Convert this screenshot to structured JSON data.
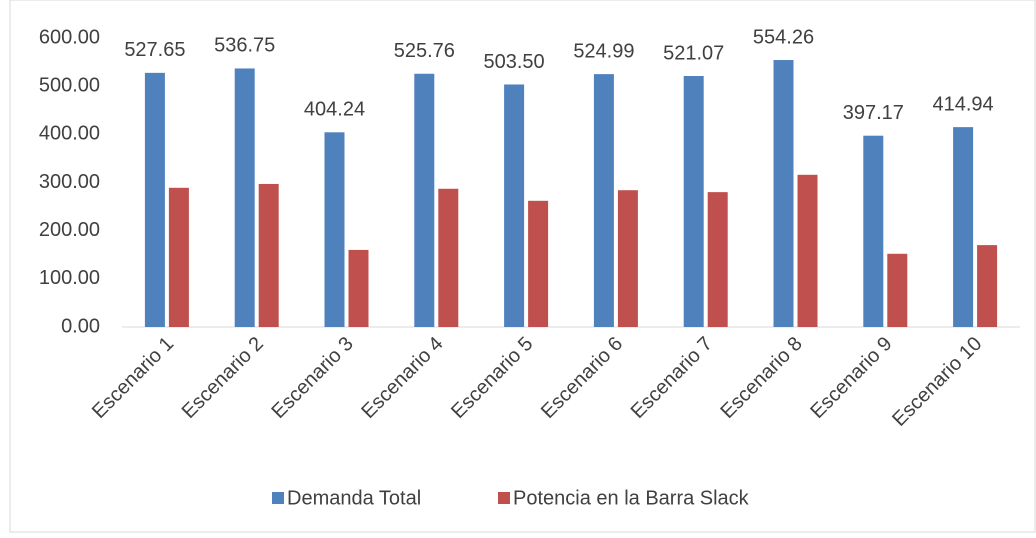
{
  "chart_data": {
    "type": "bar",
    "categories": [
      "Escenario 1",
      "Escenario 2",
      "Escenario 3",
      "Escenario 4",
      "Escenario 5",
      "Escenario 6",
      "Escenario 7",
      "Escenario 8",
      "Escenario 9",
      "Escenario 10"
    ],
    "series": [
      {
        "name": "Demanda Total",
        "color": "#4f81bd",
        "values": [
          527.65,
          536.75,
          404.24,
          525.76,
          503.5,
          524.99,
          521.07,
          554.26,
          397.17,
          414.94
        ],
        "value_labels": [
          "527.65",
          "536.75",
          "404.24",
          "525.76",
          "503.50",
          "524.99",
          "521.07",
          "554.26",
          "397.17",
          "414.94"
        ]
      },
      {
        "name": "Potencia en la Barra Slack",
        "color": "#c0504d",
        "values": [
          289,
          297,
          160,
          287,
          262,
          284,
          280,
          316,
          152,
          170
        ]
      }
    ],
    "ylim": [
      0,
      600
    ],
    "yticks": [
      {
        "value": 0,
        "label": "0.00"
      },
      {
        "value": 100,
        "label": "100.00"
      },
      {
        "value": 200,
        "label": "200.00"
      },
      {
        "value": 300,
        "label": "300.00"
      },
      {
        "value": 400,
        "label": "400.00"
      },
      {
        "value": 500,
        "label": "500.00"
      },
      {
        "value": 600,
        "label": "600.00"
      }
    ],
    "legend": "bottom"
  }
}
